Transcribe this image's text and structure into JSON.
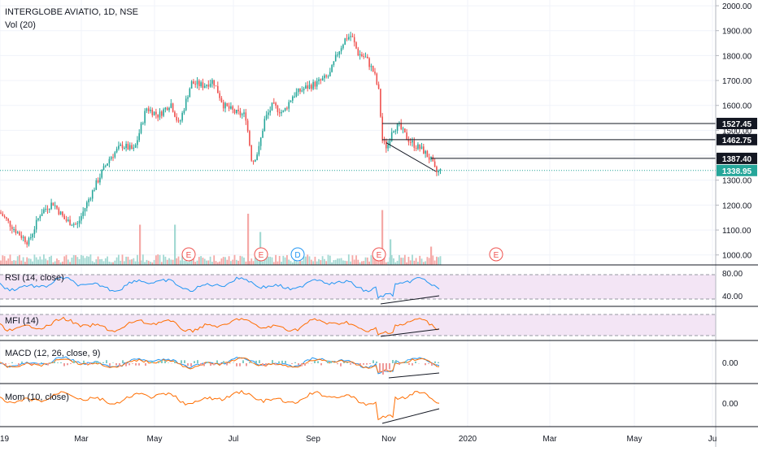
{
  "header": {
    "symbol": "INTERGLOBE AVIATIO, 1D, NSE",
    "vol_label": "Vol (20)"
  },
  "price_axis": {
    "ticks": [
      "2000.00",
      "1900.00",
      "1800.00",
      "1700.00",
      "1600.00",
      "1500.00",
      "1400.00",
      "1300.00",
      "1200.00",
      "1100.00",
      "1000.00"
    ]
  },
  "price_badges": [
    {
      "label": "1527.45",
      "value": 1527.45
    },
    {
      "label": "1462.75",
      "value": 1462.75
    },
    {
      "label": "1387.40",
      "value": 1387.4
    },
    {
      "label": "1338.95",
      "value": 1338.95,
      "current": true
    }
  ],
  "time_axis": {
    "labels": [
      "19",
      "Mar",
      "May",
      "Jul",
      "Sep",
      "Nov",
      "2020",
      "Mar",
      "May",
      "Ju"
    ]
  },
  "events": [
    {
      "label": "E",
      "type": "earnings"
    },
    {
      "label": "E",
      "type": "earnings"
    },
    {
      "label": "D",
      "type": "dividend"
    },
    {
      "label": "E",
      "type": "earnings"
    },
    {
      "label": "E",
      "type": "earnings-future"
    }
  ],
  "indicators": [
    {
      "id": "rsi",
      "label": "RSI (14, close)",
      "ticks": [
        "80.00",
        "40.00"
      ]
    },
    {
      "id": "mfi",
      "label": "MFI (14)",
      "ticks": []
    },
    {
      "id": "macd",
      "label": "MACD (12, 26, close, 9)",
      "ticks": [
        "0.00"
      ]
    },
    {
      "id": "mom",
      "label": "Mom (10, close)",
      "ticks": [
        "0.00"
      ]
    }
  ],
  "colors": {
    "up": "#26a69a",
    "down": "#ef5350",
    "rsi": "#2196f3",
    "mfi": "#ff6d00",
    "macd_signal": "#ff6d00",
    "macd_line": "#2196f3",
    "band": "#e1bee7"
  },
  "chart_data": {
    "type": "candlestick",
    "title": "INTERGLOBE AVIATIO, 1D, NSE",
    "y_range": [
      960,
      2010
    ],
    "price_path": [
      [
        0,
        1170
      ],
      [
        20,
        1095
      ],
      [
        35,
        1050
      ],
      [
        50,
        1170
      ],
      [
        65,
        1210
      ],
      [
        80,
        1140
      ],
      [
        95,
        1120
      ],
      [
        110,
        1230
      ],
      [
        125,
        1330
      ],
      [
        135,
        1390
      ],
      [
        150,
        1440
      ],
      [
        165,
        1420
      ],
      [
        180,
        1590
      ],
      [
        195,
        1560
      ],
      [
        210,
        1610
      ],
      [
        220,
        1520
      ],
      [
        235,
        1690
      ],
      [
        250,
        1680
      ],
      [
        262,
        1700
      ],
      [
        275,
        1600
      ],
      [
        290,
        1570
      ],
      [
        302,
        1560
      ],
      [
        310,
        1370
      ],
      [
        318,
        1420
      ],
      [
        325,
        1540
      ],
      [
        335,
        1600
      ],
      [
        348,
        1570
      ],
      [
        360,
        1640
      ],
      [
        375,
        1670
      ],
      [
        390,
        1690
      ],
      [
        405,
        1720
      ],
      [
        415,
        1810
      ],
      [
        425,
        1870
      ],
      [
        432,
        1880
      ],
      [
        440,
        1810
      ],
      [
        450,
        1790
      ],
      [
        460,
        1730
      ],
      [
        466,
        1650
      ],
      [
        470,
        1460
      ],
      [
        476,
        1430
      ],
      [
        482,
        1505
      ],
      [
        490,
        1520
      ],
      [
        500,
        1470
      ],
      [
        510,
        1440
      ],
      [
        520,
        1420
      ],
      [
        530,
        1380
      ],
      [
        536,
        1330
      ],
      [
        542,
        1339
      ]
    ],
    "volume_bars": [
      [
        172,
        0.55
      ],
      [
        215,
        0.55
      ],
      [
        305,
        0.7
      ],
      [
        320,
        0.45
      ],
      [
        470,
        0.75
      ],
      [
        480,
        0.35
      ],
      [
        530,
        0.25
      ]
    ],
    "trendlines": [
      {
        "from": [
          475,
          1450
        ],
        "to": [
          536,
          1335
        ]
      }
    ],
    "horizontal_levels": [
      1527.45,
      1462.75,
      1387.4
    ]
  }
}
